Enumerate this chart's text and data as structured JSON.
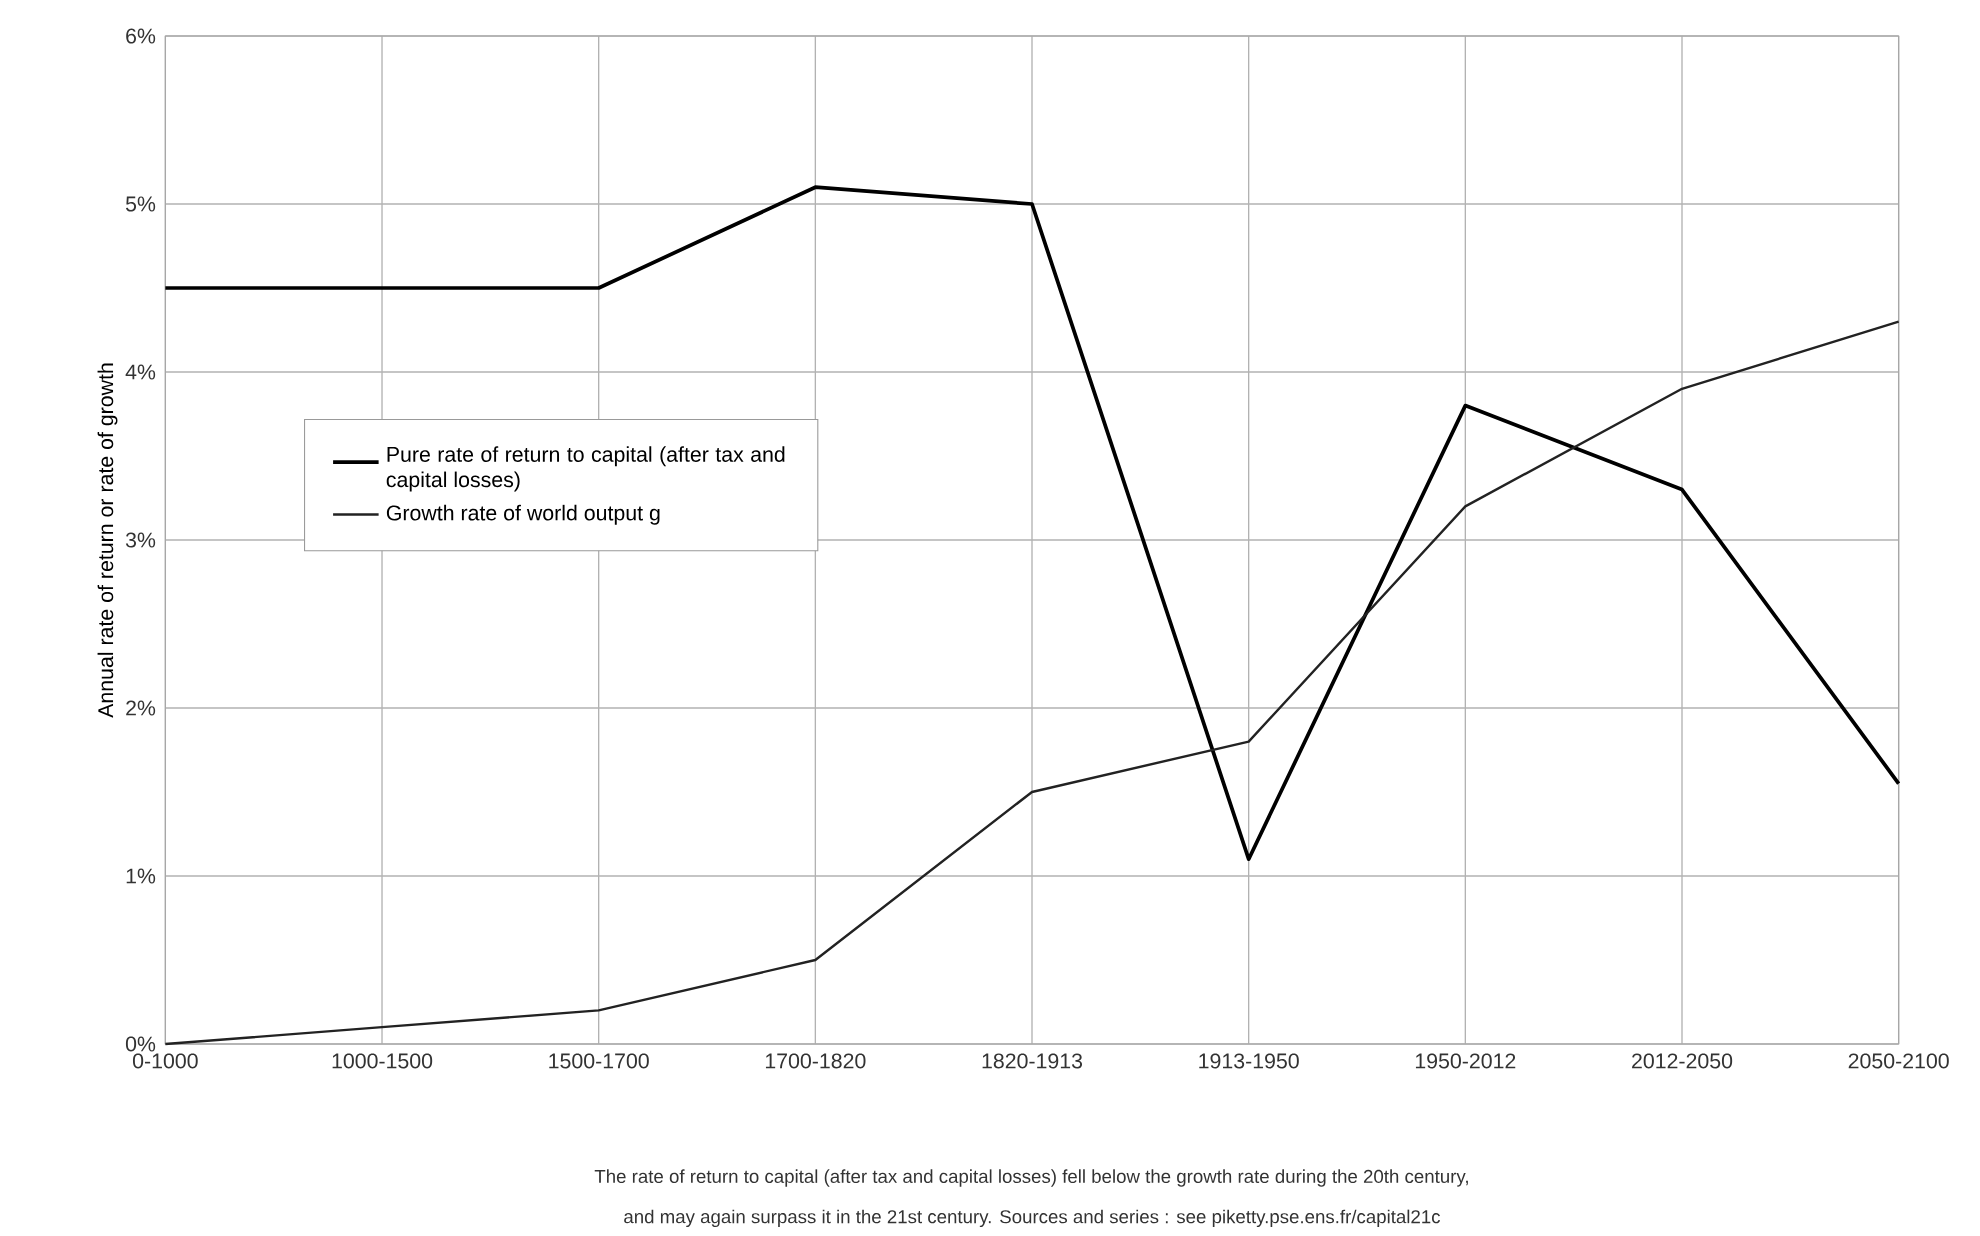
{
  "chart_data": {
    "type": "line",
    "ylabel": "Annual rate of return or rate of growth",
    "categories": [
      "0-1000",
      "1000-1500",
      "1500-1700",
      "1700-1820",
      "1820-1913",
      "1913-1950",
      "1950-2012",
      "2012-2050",
      "2050-2100"
    ],
    "series": [
      {
        "name": "Pure rate of return to capital (after tax and capital losses)",
        "color": "#000000",
        "values": [
          4.5,
          4.5,
          4.5,
          5.1,
          5.0,
          1.1,
          3.8,
          3.3,
          1.55
        ]
      },
      {
        "name": "Growth rate of world output g",
        "color": "#222222",
        "values": [
          0.0,
          0.1,
          0.2,
          0.5,
          1.5,
          1.8,
          3.2,
          3.9,
          4.3
        ]
      }
    ],
    "ylim": [
      0,
      6
    ],
    "yticks": [
      {
        "value": 0,
        "label": "0%"
      },
      {
        "value": 1,
        "label": "1%"
      },
      {
        "value": 2,
        "label": "2%"
      },
      {
        "value": 3,
        "label": "3%"
      },
      {
        "value": 4,
        "label": "4%"
      },
      {
        "value": 5,
        "label": "5%"
      },
      {
        "value": 6,
        "label": "6%"
      }
    ],
    "grid": true,
    "legend": "left",
    "annotations": [
      "The rate of return to capital (after tax and capital losses) fell below the growth rate during the 20th century,",
      "and may again surpass it in the 21st century. Sources and series : see piketty.pse.ens.fr/capital21c"
    ]
  }
}
